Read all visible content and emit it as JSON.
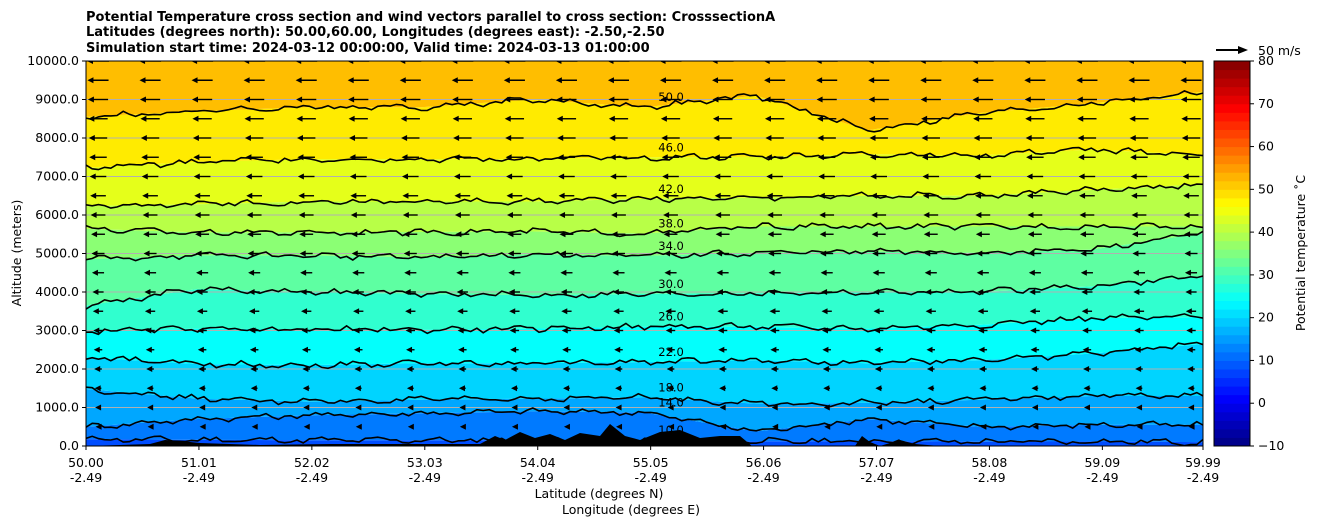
{
  "chart_data": {
    "type": "contour-crosssection",
    "title_lines": [
      "Potential Temperature cross section and wind vectors parallel to cross section: CrosssectionA",
      "Latitudes (degrees north): 50.00,60.00, Longitudes (degrees east): -2.50,-2.50",
      "Simulation start time: 2024-03-12 00:00:00, Valid time: 2024-03-13 01:00:00"
    ],
    "ylabel": "Altitude (meters)",
    "xlabel_1": "Latitude (degrees N)",
    "xlabel_2": "Longitude (degrees E)",
    "ylim": [
      0,
      10000
    ],
    "y_ticks": [
      "0.0",
      "1000.0",
      "2000.0",
      "3000.0",
      "4000.0",
      "5000.0",
      "6000.0",
      "7000.0",
      "8000.0",
      "9000.0",
      "10000.0"
    ],
    "x_ticks": [
      {
        "lat": "50.00",
        "lon": "-2.49",
        "value": 50.0
      },
      {
        "lat": "51.01",
        "lon": "-2.49",
        "value": 51.01
      },
      {
        "lat": "52.02",
        "lon": "-2.49",
        "value": 52.02
      },
      {
        "lat": "53.03",
        "lon": "-2.49",
        "value": 53.03
      },
      {
        "lat": "54.04",
        "lon": "-2.49",
        "value": 54.04
      },
      {
        "lat": "55.05",
        "lon": "-2.49",
        "value": 55.05
      },
      {
        "lat": "56.06",
        "lon": "-2.49",
        "value": 56.06
      },
      {
        "lat": "57.07",
        "lon": "-2.49",
        "value": 57.07
      },
      {
        "lat": "58.08",
        "lon": "-2.49",
        "value": 58.08
      },
      {
        "lat": "59.09",
        "lon": "-2.49",
        "value": 59.09
      },
      {
        "lat": "59.99",
        "lon": "-2.49",
        "value": 59.99
      }
    ],
    "xlim": [
      50.0,
      59.99
    ],
    "colorbar": {
      "label": "Potential temperature $^\\circ$C",
      "label_text": "Potential temperature ˚C",
      "range": [
        -10,
        80
      ],
      "ticks": [
        "−10",
        "0",
        "10",
        "20",
        "30",
        "40",
        "50",
        "60",
        "70",
        "80"
      ]
    },
    "quiver_key": {
      "label": "50 m/s"
    },
    "contours": [
      {
        "label": "10.0",
        "alt": [
          180,
          160,
          150,
          150,
          150,
          150,
          120,
          130,
          110,
          120,
          100
        ]
      },
      {
        "label": "14.0",
        "alt": [
          500,
          700,
          800,
          850,
          900,
          870,
          380,
          700,
          500,
          550,
          550
        ]
      },
      {
        "label": "18.0",
        "alt": [
          1480,
          1230,
          1150,
          1200,
          1230,
          1260,
          1100,
          1120,
          1200,
          1300,
          1300
        ]
      },
      {
        "label": "22.0",
        "alt": [
          2300,
          2130,
          2100,
          2150,
          2150,
          2180,
          2230,
          2150,
          2230,
          2400,
          2650
        ]
      },
      {
        "label": "26.0",
        "alt": [
          2980,
          3050,
          3030,
          3020,
          3050,
          3100,
          3100,
          3050,
          3150,
          3320,
          3350
        ]
      },
      {
        "label": "30.0",
        "alt": [
          3650,
          4080,
          4000,
          3950,
          3920,
          3950,
          3970,
          4000,
          4000,
          4150,
          4420
        ]
      },
      {
        "label": "34.0",
        "alt": [
          4850,
          4950,
          4950,
          4900,
          4980,
          4940,
          5020,
          5050,
          5020,
          5100,
          5530
        ]
      },
      {
        "label": "38.0",
        "alt": [
          5640,
          5550,
          5550,
          5560,
          5570,
          5520,
          5700,
          5700,
          5700,
          5700,
          5700
        ]
      },
      {
        "label": "42.0",
        "alt": [
          6230,
          6280,
          6350,
          6350,
          6350,
          6420,
          6450,
          6500,
          6500,
          6650,
          6800
        ]
      },
      {
        "label": "46.0",
        "alt": [
          7230,
          7380,
          7450,
          7450,
          7450,
          7500,
          7510,
          7580,
          7550,
          7700,
          7560
        ]
      },
      {
        "label": "50.0",
        "alt": [
          8550,
          8700,
          8800,
          8800,
          9000,
          8800,
          9100,
          8200,
          8650,
          8900,
          9200
        ]
      }
    ],
    "wind": {
      "direction": "toward-south (leftward)",
      "typical_speed_ms": [
        5,
        10,
        15,
        20,
        25,
        30
      ]
    }
  }
}
